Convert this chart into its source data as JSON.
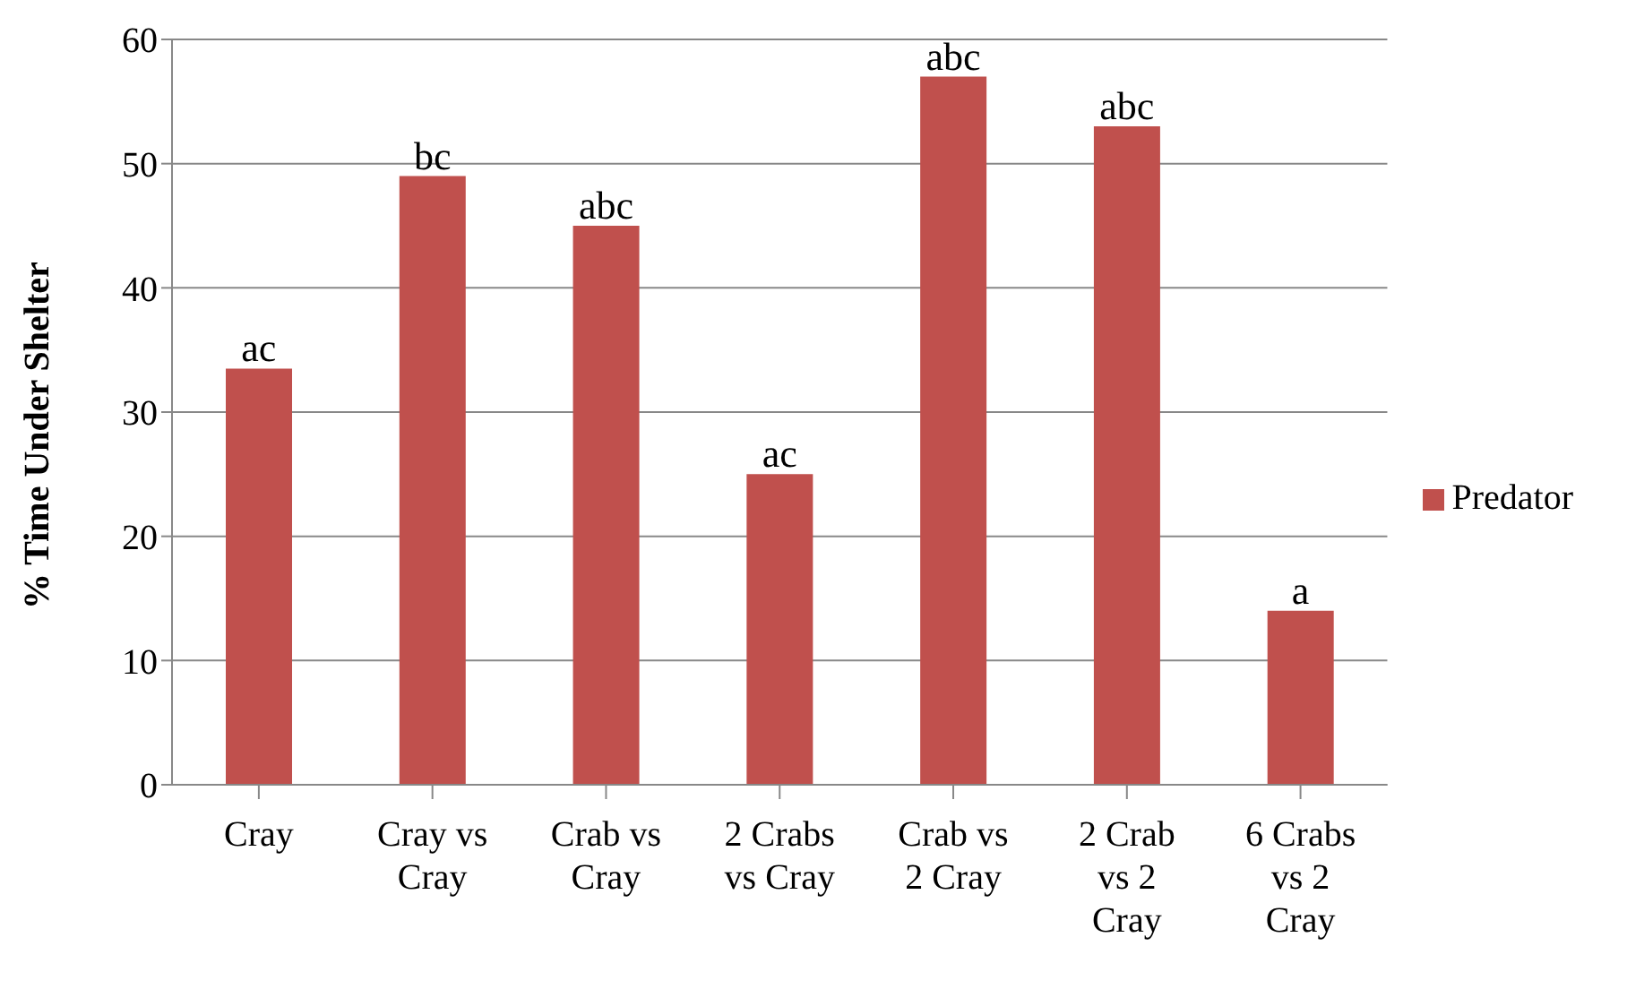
{
  "chart_data": {
    "type": "bar",
    "ylabel": "% Time Under Shelter",
    "categories": [
      "Cray",
      "Cray vs Cray",
      "Crab vs Cray",
      "2 Crabs vs Cray",
      "Crab vs 2 Cray",
      "2 Crab vs 2 Cray",
      "6 Crabs vs 2 Cray"
    ],
    "series": [
      {
        "name": "Predator",
        "color": "#c0504d",
        "values": [
          33.5,
          49,
          45,
          25,
          57,
          53,
          14
        ]
      }
    ],
    "ylim": [
      0,
      60
    ],
    "yticks": [
      0,
      10,
      20,
      30,
      40,
      50,
      60
    ],
    "grid": "y",
    "legend": "right",
    "annotations": [
      {
        "text": "ac",
        "x": "Cray",
        "y": 33.5
      },
      {
        "text": "bc",
        "x": "Cray vs Cray",
        "y": 49
      },
      {
        "text": "abc",
        "x": "Crab vs Cray",
        "y": 45
      },
      {
        "text": "ac",
        "x": "2 Crabs vs Cray",
        "y": 25
      },
      {
        "text": "abc",
        "x": "Crab vs 2 Cray",
        "y": 57
      },
      {
        "text": "abc",
        "x": "2 Crab vs 2 Cray",
        "y": 53
      },
      {
        "text": "a",
        "x": "6 Crabs vs 2 Cray",
        "y": 14
      }
    ]
  }
}
